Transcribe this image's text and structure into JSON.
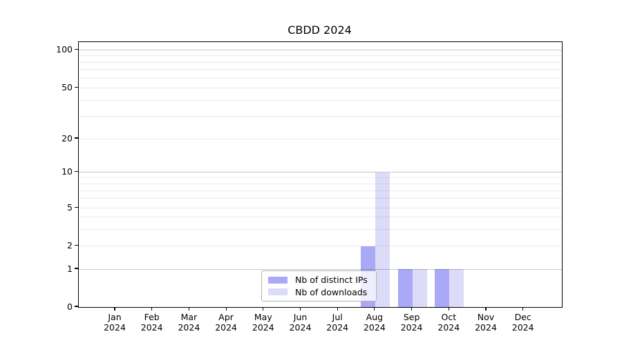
{
  "chart_data": {
    "type": "bar",
    "title": "CBDD 2024",
    "months": [
      "Jan",
      "Feb",
      "Mar",
      "Apr",
      "May",
      "Jun",
      "Jul",
      "Aug",
      "Sep",
      "Oct",
      "Nov",
      "Dec"
    ],
    "year": "2024",
    "series": [
      {
        "name": "Nb of distinct IPs",
        "key": "distinct-ips",
        "color": "#a9a9f7",
        "values": [
          0,
          0,
          0,
          0,
          0,
          0,
          0,
          2,
          1,
          1,
          0,
          0
        ]
      },
      {
        "name": "Nb of downloads",
        "key": "downloads",
        "color": "#dcdcf8",
        "values": [
          0,
          0,
          0,
          0,
          0,
          0,
          0,
          10,
          1,
          1,
          0,
          0
        ]
      }
    ],
    "y_axis": {
      "ticks": [
        0,
        1,
        2,
        5,
        10,
        20,
        50,
        100
      ],
      "minor_gridlines": [
        3,
        4,
        6,
        7,
        8,
        9,
        30,
        40,
        60,
        70,
        80,
        90
      ],
      "major_gridlines": [
        1,
        10,
        100
      ],
      "ylim": [
        0,
        100
      ],
      "scale": "log-like"
    },
    "legend": {
      "position": "bottom-center-inside",
      "items": [
        "Nb of distinct IPs",
        "Nb of downloads"
      ]
    },
    "grid": true
  },
  "colors": {
    "bar_distinct_ips": "#a9a9f7",
    "bar_downloads": "#dcdcf8",
    "axis": "#000000",
    "legend_border": "#b3b3b3"
  }
}
